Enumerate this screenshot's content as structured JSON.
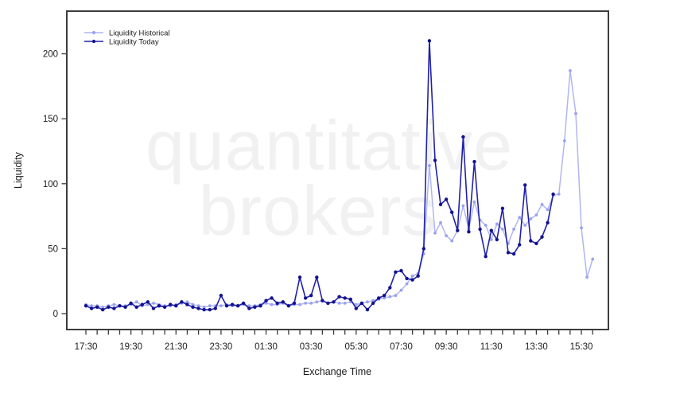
{
  "watermark": {
    "line1": "quantitative",
    "line2": "brokers"
  },
  "chart_data": {
    "type": "line",
    "title": "",
    "xlabel": "Exchange Time",
    "ylabel": "Liquidity",
    "x_start": "17:30",
    "x_end": "16:00",
    "x_interval_minutes": 15,
    "x_minor_tick_minutes": 30,
    "x_tick_labels": [
      "17:30",
      "19:30",
      "21:30",
      "23:30",
      "01:30",
      "03:30",
      "05:30",
      "07:30",
      "09:30",
      "11:30",
      "13:30",
      "15:30"
    ],
    "ylim": [
      0,
      215
    ],
    "yticks": [
      0,
      50,
      100,
      150,
      200
    ],
    "grid": false,
    "legend_position": "top-left",
    "colors": {
      "historical_line": "#b0b6f2",
      "historical_marker": "#99a2ee",
      "today_line": "#2121a8",
      "today_marker": "#12128e",
      "axis": "#3d3d3d",
      "text": "#1a1a1a",
      "watermark": "#f1f1f1"
    },
    "series": [
      {
        "name": "Liquidity Historical",
        "color": "#b0b6f2",
        "marker_color": "#99a2ee",
        "start_time": "17:30",
        "end_time": "16:00",
        "values": [
          7,
          6,
          6,
          5,
          6,
          7,
          6,
          6,
          7,
          9,
          6,
          7,
          8,
          7,
          6,
          6,
          7,
          8,
          9,
          7,
          6,
          5,
          6,
          6,
          6,
          7,
          6,
          6,
          7,
          6,
          6,
          7,
          8,
          7,
          7,
          8,
          6,
          7,
          7,
          8,
          8,
          9,
          10,
          8,
          9,
          8,
          8,
          9,
          7,
          8,
          9,
          10,
          11,
          12,
          13,
          14,
          18,
          23,
          29,
          31,
          46,
          114,
          62,
          70,
          60,
          56,
          64,
          83,
          65,
          86,
          72,
          68,
          57,
          69,
          65,
          54,
          65,
          74,
          68,
          73,
          76,
          84,
          80,
          91,
          92,
          133,
          187,
          154,
          66,
          28,
          42
        ]
      },
      {
        "name": "Liquidity Today",
        "color": "#2121a8",
        "marker_color": "#12128e",
        "start_time": "17:30",
        "end_time": "14:15",
        "values": [
          6,
          4,
          5,
          3,
          5,
          4,
          6,
          5,
          8,
          5,
          7,
          9,
          4,
          6,
          5,
          7,
          6,
          9,
          7,
          5,
          4,
          3,
          3,
          4,
          14,
          6,
          7,
          6,
          8,
          4,
          5,
          6,
          10,
          12,
          8,
          9,
          6,
          8,
          28,
          12,
          14,
          28,
          10,
          8,
          9,
          13,
          12,
          11,
          4,
          8,
          3,
          8,
          12,
          14,
          20,
          32,
          33,
          27,
          26,
          29,
          50,
          210,
          118,
          84,
          88,
          78,
          64,
          136,
          63,
          117,
          65,
          44,
          64,
          57,
          81,
          47,
          46,
          53,
          99,
          56,
          54,
          59,
          70,
          92
        ]
      }
    ]
  }
}
